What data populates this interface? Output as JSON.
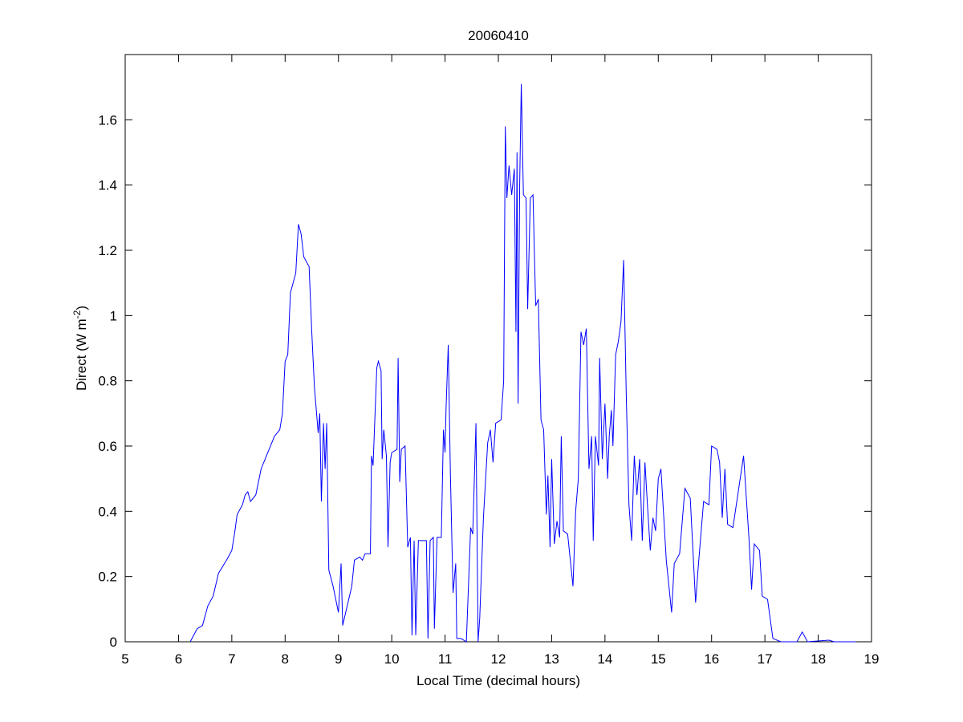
{
  "chart_data": {
    "type": "line",
    "title": "20060410",
    "xlabel": "Local Time (decimal hours)",
    "ylabel_parts": [
      "Direct (W m",
      "-2",
      ")"
    ],
    "xlim": [
      5,
      19
    ],
    "xticks": [
      5,
      6,
      7,
      8,
      9,
      10,
      11,
      12,
      13,
      14,
      15,
      16,
      17,
      18,
      19
    ],
    "ylim": [
      0,
      1.8
    ],
    "yticks": [
      0,
      0.2,
      0.4,
      0.6,
      0.8,
      1,
      1.2,
      1.4,
      1.6
    ],
    "series": [
      {
        "color": "#0000ff",
        "x": [
          6.22,
          6.35,
          6.45,
          6.55,
          6.65,
          6.75,
          6.9,
          7.0,
          7.05,
          7.1,
          7.2,
          7.25,
          7.3,
          7.35,
          7.45,
          7.55,
          7.65,
          7.75,
          7.8,
          7.9,
          7.95,
          8.0,
          8.05,
          8.1,
          8.2,
          8.25,
          8.3,
          8.35,
          8.45,
          8.5,
          8.55,
          8.6,
          8.62,
          8.65,
          8.68,
          8.72,
          8.75,
          8.78,
          8.82,
          8.9,
          9.0,
          9.05,
          9.08,
          9.15,
          9.25,
          9.3,
          9.4,
          9.45,
          9.5,
          9.6,
          9.62,
          9.65,
          9.72,
          9.75,
          9.8,
          9.82,
          9.85,
          9.9,
          9.93,
          9.97,
          10.0,
          10.1,
          10.12,
          10.15,
          10.18,
          10.25,
          10.3,
          10.35,
          10.38,
          10.42,
          10.45,
          10.5,
          10.65,
          10.68,
          10.72,
          10.78,
          10.8,
          10.85,
          10.93,
          10.97,
          11.0,
          11.02,
          11.06,
          11.1,
          11.15,
          11.2,
          11.22,
          11.3,
          11.4,
          11.48,
          11.52,
          11.58,
          11.62,
          11.65,
          11.72,
          11.8,
          11.85,
          11.9,
          11.95,
          12.05,
          12.1,
          12.13,
          12.16,
          12.2,
          12.25,
          12.3,
          12.33,
          12.35,
          12.37,
          12.4,
          12.43,
          12.47,
          12.52,
          12.55,
          12.6,
          12.65,
          12.7,
          12.75,
          12.8,
          12.85,
          12.9,
          12.93,
          12.97,
          13.0,
          13.05,
          13.1,
          13.15,
          13.18,
          13.22,
          13.3,
          13.4,
          13.45,
          13.5,
          13.55,
          13.6,
          13.65,
          13.7,
          13.75,
          13.78,
          13.82,
          13.88,
          13.9,
          13.95,
          14.0,
          14.05,
          14.08,
          14.12,
          14.15,
          14.2,
          14.25,
          14.3,
          14.35,
          14.4,
          14.45,
          14.5,
          14.55,
          14.6,
          14.65,
          14.7,
          14.75,
          14.8,
          14.85,
          14.9,
          14.95,
          15.0,
          15.05,
          15.15,
          15.25,
          15.3,
          15.4,
          15.5,
          15.6,
          15.7,
          15.75,
          15.85,
          15.95,
          16.0,
          16.1,
          16.15,
          16.2,
          16.25,
          16.3,
          16.4,
          16.5,
          16.6,
          16.7,
          16.75,
          16.8,
          16.9,
          16.95,
          17.05,
          17.15,
          17.3,
          17.6,
          17.7,
          17.8,
          18.2,
          18.3,
          18.7
        ],
        "values": [
          0,
          0.04,
          0.05,
          0.11,
          0.14,
          0.21,
          0.25,
          0.28,
          0.33,
          0.39,
          0.42,
          0.45,
          0.46,
          0.43,
          0.45,
          0.53,
          0.57,
          0.61,
          0.63,
          0.65,
          0.7,
          0.86,
          0.88,
          1.07,
          1.13,
          1.28,
          1.25,
          1.18,
          1.15,
          0.95,
          0.78,
          0.68,
          0.64,
          0.7,
          0.43,
          0.67,
          0.53,
          0.67,
          0.22,
          0.17,
          0.09,
          0.24,
          0.05,
          0.1,
          0.17,
          0.25,
          0.26,
          0.25,
          0.27,
          0.27,
          0.57,
          0.54,
          0.84,
          0.86,
          0.83,
          0.56,
          0.65,
          0.57,
          0.29,
          0.55,
          0.58,
          0.59,
          0.87,
          0.49,
          0.59,
          0.6,
          0.29,
          0.32,
          0.02,
          0.31,
          0.02,
          0.31,
          0.31,
          0.01,
          0.31,
          0.32,
          0.04,
          0.32,
          0.32,
          0.65,
          0.58,
          0.72,
          0.91,
          0.52,
          0.15,
          0.24,
          0.01,
          0.01,
          0,
          0.35,
          0.33,
          0.67,
          0,
          0.07,
          0.38,
          0.61,
          0.65,
          0.55,
          0.67,
          0.68,
          0.8,
          1.58,
          1.36,
          1.46,
          1.37,
          1.45,
          0.95,
          1.5,
          0.73,
          1.4,
          1.71,
          1.37,
          1.36,
          1.02,
          1.36,
          1.37,
          1.03,
          1.05,
          0.68,
          0.65,
          0.39,
          0.51,
          0.29,
          0.56,
          0.3,
          0.37,
          0.32,
          0.63,
          0.34,
          0.33,
          0.17,
          0.4,
          0.5,
          0.95,
          0.91,
          0.96,
          0.53,
          0.63,
          0.31,
          0.63,
          0.54,
          0.87,
          0.56,
          0.73,
          0.5,
          0.63,
          0.71,
          0.6,
          0.88,
          0.92,
          0.98,
          1.17,
          0.75,
          0.42,
          0.31,
          0.57,
          0.45,
          0.56,
          0.31,
          0.55,
          0.41,
          0.28,
          0.38,
          0.34,
          0.5,
          0.53,
          0.25,
          0.09,
          0.24,
          0.27,
          0.47,
          0.44,
          0.12,
          0.23,
          0.43,
          0.42,
          0.6,
          0.59,
          0.55,
          0.38,
          0.53,
          0.36,
          0.35,
          0.46,
          0.57,
          0.32,
          0.16,
          0.3,
          0.28,
          0.14,
          0.13,
          0.01,
          0,
          0,
          0.03,
          0,
          0.005,
          0,
          0
        ]
      }
    ]
  }
}
